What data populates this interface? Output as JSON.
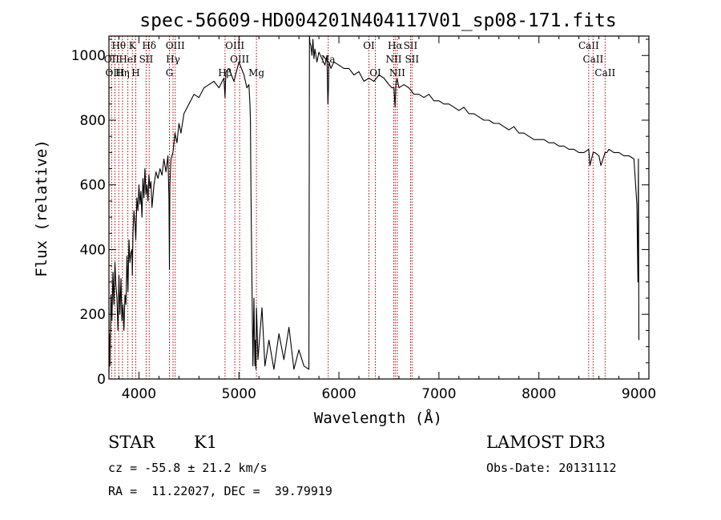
{
  "chart_data": {
    "type": "line",
    "title": "spec-56609-HD004201N404117V01_sp08-171.fits",
    "xlabel": "Wavelength (Å)",
    "ylabel": "Flux (relative)",
    "xlim": [
      3700,
      9100
    ],
    "ylim": [
      0,
      1060
    ],
    "xticks": [
      4000,
      5000,
      6000,
      7000,
      8000,
      9000
    ],
    "yticks": [
      0,
      200,
      400,
      600,
      800,
      1000
    ],
    "ytick_labels": [
      "0",
      "200",
      "400",
      "600",
      "800",
      "1000"
    ],
    "series": [
      {
        "name": "spectrum",
        "x": [
          3700,
          3705,
          3710,
          3720,
          3730,
          3740,
          3750,
          3760,
          3770,
          3780,
          3790,
          3800,
          3810,
          3820,
          3830,
          3840,
          3850,
          3860,
          3870,
          3880,
          3890,
          3900,
          3910,
          3920,
          3930,
          3934,
          3940,
          3950,
          3960,
          3968,
          3980,
          3990,
          4000,
          4010,
          4020,
          4030,
          4040,
          4050,
          4060,
          4070,
          4080,
          4090,
          4100,
          4110,
          4120,
          4130,
          4150,
          4170,
          4190,
          4210,
          4230,
          4250,
          4270,
          4290,
          4300,
          4305,
          4310,
          4320,
          4340,
          4360,
          4380,
          4400,
          4420,
          4450,
          4500,
          4550,
          4600,
          4650,
          4700,
          4750,
          4800,
          4850,
          4861,
          4870,
          4900,
          4950,
          5000,
          5050,
          5080,
          5100,
          5110,
          5115,
          5120,
          5130,
          5140,
          5150,
          5155,
          5160,
          5165,
          5170,
          5175,
          5180,
          5190,
          5200,
          5230,
          5260,
          5300,
          5350,
          5400,
          5450,
          5500,
          5550,
          5600,
          5650,
          5700,
          5705,
          5710,
          5720,
          5730,
          5740,
          5750,
          5760,
          5780,
          5800,
          5830,
          5860,
          5880,
          5890,
          5895,
          5900,
          5920,
          5950,
          6000,
          6050,
          6100,
          6150,
          6200,
          6250,
          6300,
          6350,
          6400,
          6450,
          6500,
          6530,
          6550,
          6562,
          6570,
          6580,
          6600,
          6650,
          6700,
          6750,
          6800,
          6850,
          6900,
          6950,
          7000,
          7050,
          7100,
          7150,
          7200,
          7250,
          7300,
          7350,
          7400,
          7450,
          7500,
          7550,
          7600,
          7650,
          7700,
          7750,
          7800,
          7850,
          7900,
          7950,
          8000,
          8050,
          8100,
          8150,
          8200,
          8250,
          8300,
          8350,
          8400,
          8450,
          8498,
          8510,
          8542,
          8560,
          8600,
          8620,
          8662,
          8680,
          8700,
          8750,
          8800,
          8850,
          8900,
          8950,
          8980,
          8990,
          8995,
          9000
        ],
        "y": [
          20,
          140,
          40,
          260,
          180,
          330,
          230,
          360,
          290,
          250,
          150,
          320,
          200,
          310,
          180,
          230,
          150,
          260,
          230,
          380,
          270,
          430,
          360,
          390,
          400,
          320,
          450,
          520,
          480,
          430,
          560,
          520,
          600,
          540,
          580,
          500,
          620,
          560,
          650,
          570,
          600,
          550,
          630,
          590,
          610,
          530,
          600,
          640,
          620,
          650,
          630,
          680,
          640,
          690,
          560,
          340,
          600,
          680,
          700,
          760,
          730,
          790,
          760,
          820,
          850,
          880,
          870,
          900,
          910,
          920,
          900,
          930,
          870,
          950,
          960,
          920,
          980,
          940,
          900,
          910,
          850,
          800,
          600,
          300,
          40,
          250,
          130,
          40,
          120,
          30,
          220,
          180,
          60,
          100,
          220,
          40,
          120,
          30,
          140,
          60,
          160,
          30,
          90,
          40,
          30,
          1060,
          1040,
          1030,
          1000,
          1050,
          990,
          1020,
          980,
          1010,
          990,
          970,
          1000,
          850,
          900,
          980,
          960,
          980,
          970,
          960,
          960,
          940,
          950,
          920,
          930,
          920,
          940,
          930,
          910,
          900,
          900,
          840,
          910,
          930,
          900,
          910,
          900,
          880,
          880,
          870,
          880,
          860,
          860,
          850,
          850,
          840,
          830,
          840,
          820,
          820,
          810,
          800,
          800,
          790,
          790,
          780,
          770,
          780,
          760,
          760,
          750,
          740,
          740,
          740,
          730,
          730,
          720,
          720,
          710,
          710,
          700,
          700,
          710,
          660,
          700,
          700,
          690,
          660,
          700,
          700,
          710,
          700,
          700,
          690,
          690,
          680,
          540,
          300,
          680,
          120
        ]
      }
    ],
    "spectral_lines": [
      {
        "name": "Hθ",
        "wavelength": 3798,
        "row": 0
      },
      {
        "name": "OII",
        "wavelength": 3727,
        "row": 1
      },
      {
        "name": "OIII",
        "wavelength": 3760,
        "row": 2
      },
      {
        "name": "Hη",
        "wavelength": 3835,
        "row": 2
      },
      {
        "name": "K",
        "wavelength": 3934,
        "row": 0
      },
      {
        "name": "HeI",
        "wavelength": 3889,
        "row": 1
      },
      {
        "name": "H",
        "wavelength": 3968,
        "row": 2
      },
      {
        "name": "Hδ",
        "wavelength": 4102,
        "row": 0
      },
      {
        "name": "SII",
        "wavelength": 4072,
        "row": 1
      },
      {
        "name": "OIII",
        "wavelength": 4363,
        "row": 0
      },
      {
        "name": "Hγ",
        "wavelength": 4341,
        "row": 1
      },
      {
        "name": "G",
        "wavelength": 4305,
        "row": 2
      },
      {
        "name": "OIII",
        "wavelength": 4959,
        "row": 0
      },
      {
        "name": "OIII",
        "wavelength": 5007,
        "row": 1
      },
      {
        "name": "Hβ",
        "wavelength": 4861,
        "row": 2
      },
      {
        "name": "Mg",
        "wavelength": 5175,
        "row": 2
      },
      {
        "name": "Na",
        "wavelength": 5893,
        "row": 1
      },
      {
        "name": "OI",
        "wavelength": 6300,
        "row": 0
      },
      {
        "name": "OI",
        "wavelength": 6364,
        "row": 2
      },
      {
        "name": "Hα",
        "wavelength": 6563,
        "row": 0
      },
      {
        "name": "NII",
        "wavelength": 6548,
        "row": 1
      },
      {
        "name": "NII",
        "wavelength": 6583,
        "row": 2
      },
      {
        "name": "SII",
        "wavelength": 6716,
        "row": 0
      },
      {
        "name": "SII",
        "wavelength": 6731,
        "row": 1
      },
      {
        "name": "CaII",
        "wavelength": 8498,
        "row": 0
      },
      {
        "name": "CaII",
        "wavelength": 8542,
        "row": 1
      },
      {
        "name": "CaII",
        "wavelength": 8662,
        "row": 2
      }
    ]
  },
  "info": {
    "class": "STAR",
    "subclass": "K1",
    "survey": "LAMOST DR3",
    "redshift": "cz = -55.8 ± 21.2 km/s",
    "obs_date": "Obs-Date: 20131112",
    "coords": "RA =  11.22027, DEC =  39.79919"
  },
  "colors": {
    "spectrum": "#000000",
    "lines": "#b00000",
    "axes": "#000000"
  }
}
